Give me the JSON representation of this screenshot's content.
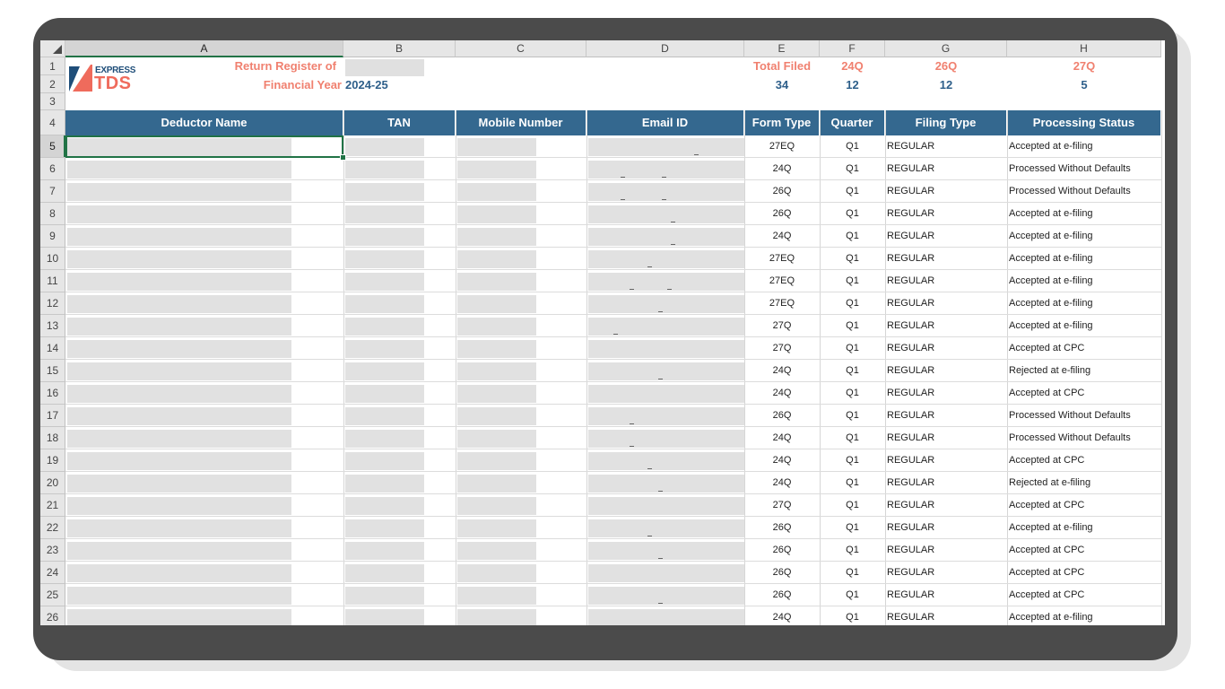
{
  "columns": [
    "A",
    "B",
    "C",
    "D",
    "E",
    "F",
    "G",
    "H"
  ],
  "header": {
    "return_register_label": "Return Register of",
    "financial_year_label": "Financial Year",
    "financial_year_value": "2024-25",
    "total_filed_label": "Total Filed",
    "total_filed_value": "34",
    "form_24q_label": "24Q",
    "form_24q_value": "12",
    "form_26q_label": "26Q",
    "form_26q_value": "12",
    "form_27q_label": "27Q",
    "form_27q_value": "5"
  },
  "logo": {
    "top": "EXPRESS",
    "bottom": "TDS"
  },
  "table_headers": [
    "Deductor Name",
    "TAN",
    "Mobile Number",
    "Email ID",
    "Form Type",
    "Quarter",
    "Filing Type",
    "Processing Status"
  ],
  "rows": [
    {
      "row": 5,
      "form": "27EQ",
      "quarter": "Q1",
      "filing": "REGULAR",
      "status": "Accepted at e-filing"
    },
    {
      "row": 6,
      "form": "24Q",
      "quarter": "Q1",
      "filing": "REGULAR",
      "status": "Processed Without Defaults"
    },
    {
      "row": 7,
      "form": "26Q",
      "quarter": "Q1",
      "filing": "REGULAR",
      "status": "Processed Without Defaults"
    },
    {
      "row": 8,
      "form": "26Q",
      "quarter": "Q1",
      "filing": "REGULAR",
      "status": "Accepted at e-filing"
    },
    {
      "row": 9,
      "form": "24Q",
      "quarter": "Q1",
      "filing": "REGULAR",
      "status": "Accepted at e-filing"
    },
    {
      "row": 10,
      "form": "27EQ",
      "quarter": "Q1",
      "filing": "REGULAR",
      "status": "Accepted at e-filing"
    },
    {
      "row": 11,
      "form": "27EQ",
      "quarter": "Q1",
      "filing": "REGULAR",
      "status": "Accepted at e-filing"
    },
    {
      "row": 12,
      "form": "27EQ",
      "quarter": "Q1",
      "filing": "REGULAR",
      "status": "Accepted at e-filing"
    },
    {
      "row": 13,
      "form": "27Q",
      "quarter": "Q1",
      "filing": "REGULAR",
      "status": "Accepted at e-filing"
    },
    {
      "row": 14,
      "form": "27Q",
      "quarter": "Q1",
      "filing": "REGULAR",
      "status": "Accepted at CPC"
    },
    {
      "row": 15,
      "form": "24Q",
      "quarter": "Q1",
      "filing": "REGULAR",
      "status": "Rejected at e-filing"
    },
    {
      "row": 16,
      "form": "24Q",
      "quarter": "Q1",
      "filing": "REGULAR",
      "status": "Accepted at CPC"
    },
    {
      "row": 17,
      "form": "26Q",
      "quarter": "Q1",
      "filing": "REGULAR",
      "status": "Processed Without Defaults"
    },
    {
      "row": 18,
      "form": "24Q",
      "quarter": "Q1",
      "filing": "REGULAR",
      "status": "Processed Without Defaults"
    },
    {
      "row": 19,
      "form": "24Q",
      "quarter": "Q1",
      "filing": "REGULAR",
      "status": "Accepted at CPC"
    },
    {
      "row": 20,
      "form": "24Q",
      "quarter": "Q1",
      "filing": "REGULAR",
      "status": "Rejected at e-filing"
    },
    {
      "row": 21,
      "form": "27Q",
      "quarter": "Q1",
      "filing": "REGULAR",
      "status": "Accepted at CPC"
    },
    {
      "row": 22,
      "form": "26Q",
      "quarter": "Q1",
      "filing": "REGULAR",
      "status": "Accepted at e-filing"
    },
    {
      "row": 23,
      "form": "26Q",
      "quarter": "Q1",
      "filing": "REGULAR",
      "status": "Accepted at CPC"
    },
    {
      "row": 24,
      "form": "26Q",
      "quarter": "Q1",
      "filing": "REGULAR",
      "status": "Accepted at CPC"
    },
    {
      "row": 25,
      "form": "26Q",
      "quarter": "Q1",
      "filing": "REGULAR",
      "status": "Accepted at CPC"
    },
    {
      "row": 26,
      "form": "24Q",
      "quarter": "Q1",
      "filing": "REGULAR",
      "status": "Accepted at e-filing"
    }
  ]
}
